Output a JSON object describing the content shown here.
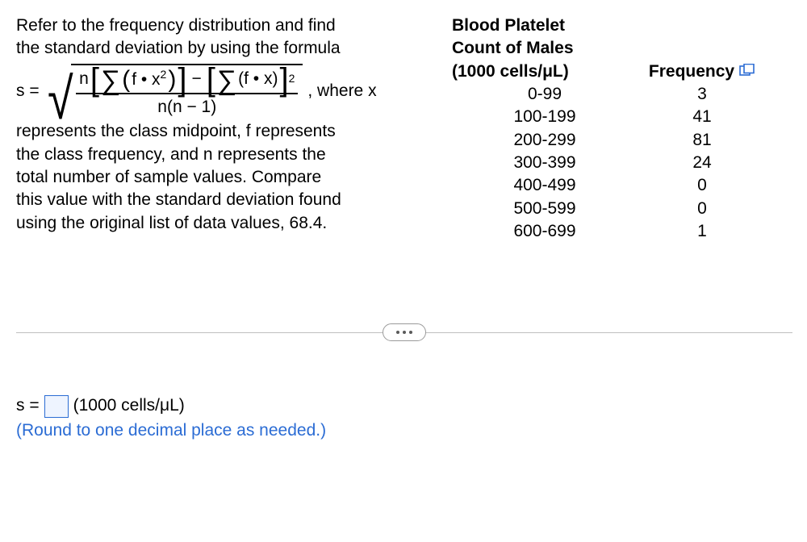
{
  "problem": {
    "intro_line1": "Refer to the frequency distribution and find",
    "intro_line2": "the standard deviation by using the formula",
    "where_text": ", where x",
    "post_line1": "represents the class midpoint, f represents",
    "post_line2": "the class frequency, and n represents the",
    "post_line3": "total number of sample values. Compare",
    "post_line4": "this value with the standard deviation found",
    "post_line5": "using the original list of data values, 68.4."
  },
  "formula": {
    "lhs": "s =",
    "n": "n",
    "sigma": "∑",
    "f_dot_x2_open": "(",
    "f_dot_x2": "f • x",
    "sq": "2",
    "f_dot_x2_close": ")",
    "minus": "−",
    "f_dot_x": "(f • x)",
    "outer_sq": "2",
    "den": "n(n − 1)"
  },
  "table": {
    "header_line1": "Blood Platelet",
    "header_line2": "Count of Males",
    "header_line3": "(1000 cells/μL)",
    "freq_header": "Frequency",
    "rows": [
      {
        "range": "0-99",
        "freq": "3"
      },
      {
        "range": "100-199",
        "freq": "41"
      },
      {
        "range": "200-299",
        "freq": "81"
      },
      {
        "range": "300-399",
        "freq": "24"
      },
      {
        "range": "400-499",
        "freq": "0"
      },
      {
        "range": "500-599",
        "freq": "0"
      },
      {
        "range": "600-699",
        "freq": "1"
      }
    ]
  },
  "answer": {
    "lhs": "s =",
    "units": "(1000 cells/μL)",
    "hint": "(Round to one decimal place as needed.)"
  },
  "colors": {
    "text": "#000000",
    "link": "#2b6cd4",
    "divider": "#bfbfbf",
    "pill_border": "#9a9a9a",
    "input_border": "#2b6cd4",
    "input_bg": "#eef4ff"
  }
}
